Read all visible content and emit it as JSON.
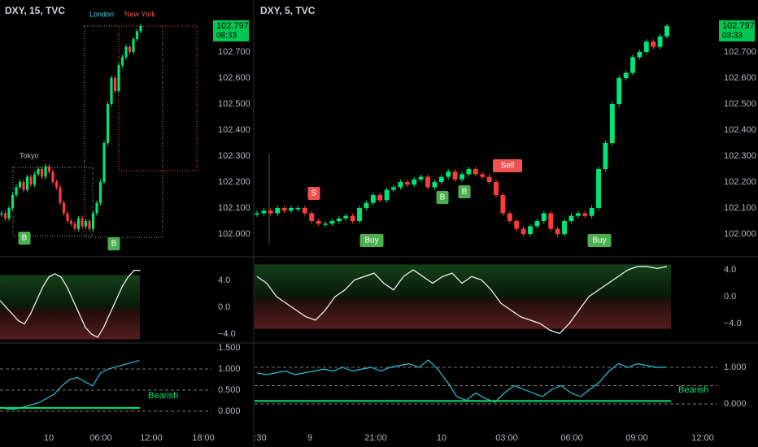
{
  "panels": [
    {
      "title": "DXY, 15, TVC",
      "sessions": [
        "Tokyo",
        "London",
        "New York"
      ],
      "markers": [
        "B",
        "B"
      ],
      "price_ticks": [
        {
          "value": 102.7,
          "label": "102.700"
        },
        {
          "value": 102.6,
          "label": "102.600"
        },
        {
          "value": 102.5,
          "label": "102.500"
        },
        {
          "value": 102.4,
          "label": "102.400"
        },
        {
          "value": 102.3,
          "label": "102.300"
        },
        {
          "value": 102.2,
          "label": "102.200"
        },
        {
          "value": 102.1,
          "label": "102.100"
        },
        {
          "value": 102.0,
          "label": "102.000"
        }
      ],
      "price_badge": {
        "price": 102.797,
        "countdown": "08:33"
      },
      "price_series": [
        102.08,
        102.06,
        102.1,
        102.15,
        102.18,
        102.2,
        102.17,
        102.22,
        102.19,
        102.23,
        102.25,
        102.22,
        102.26,
        102.24,
        102.2,
        102.18,
        102.12,
        102.08,
        102.05,
        102.04,
        102.02,
        102.06,
        102.03,
        102.05,
        102.02,
        102.08,
        102.12,
        102.2,
        102.35,
        102.5,
        102.6,
        102.55,
        102.65,
        102.68,
        102.72,
        102.7,
        102.75,
        102.78,
        102.8
      ],
      "osc_ticks": [
        {
          "value": 4,
          "label": "4.0"
        },
        {
          "value": 0,
          "label": "0.0"
        },
        {
          "value": -4,
          "label": "−4.0"
        }
      ],
      "osc_series": [
        1,
        0,
        -1,
        -2,
        -2.5,
        -1,
        1,
        3,
        4.5,
        5,
        4.5,
        3,
        1,
        -1,
        -3,
        -4,
        -4.5,
        -3,
        -1,
        1,
        3,
        4.5,
        5.5,
        5.5
      ],
      "vol_ticks": [
        {
          "value": 1.5,
          "label": "1.500"
        },
        {
          "value": 1,
          "label": "1.000"
        },
        {
          "value": 0.5,
          "label": "0.500"
        },
        {
          "value": 0,
          "label": "0.000"
        }
      ],
      "vol_label": "Bearish",
      "vol_series": [
        0.1,
        0.05,
        0.05,
        0.1,
        0.15,
        0.2,
        0.3,
        0.4,
        0.6,
        0.75,
        0.8,
        0.7,
        0.6,
        0.9,
        1.0,
        1.05,
        1.1,
        1.15,
        1.2
      ],
      "time_ticks": [
        "10",
        "06:00",
        "12:00",
        "18:00"
      ]
    },
    {
      "title": "DXY, 5, TVC",
      "sessions": [],
      "markers": [
        "S",
        "Sell",
        "Buy",
        "B",
        "B",
        "Buy"
      ],
      "price_ticks": [
        {
          "value": 102.7,
          "label": "102.700"
        },
        {
          "value": 102.6,
          "label": "102.600"
        },
        {
          "value": 102.5,
          "label": "102.500"
        },
        {
          "value": 102.4,
          "label": "102.400"
        },
        {
          "value": 102.3,
          "label": "102.300"
        },
        {
          "value": 102.2,
          "label": "102.200"
        },
        {
          "value": 102.1,
          "label": "102.100"
        },
        {
          "value": 102.0,
          "label": "102.000"
        }
      ],
      "price_badge": {
        "price": 102.797,
        "countdown": "03:33"
      },
      "price_series": [
        102.08,
        102.09,
        102.08,
        102.1,
        102.09,
        102.1,
        102.1,
        102.08,
        102.05,
        102.04,
        102.04,
        102.05,
        102.06,
        102.07,
        102.05,
        102.1,
        102.12,
        102.15,
        102.13,
        102.17,
        102.18,
        102.2,
        102.19,
        102.21,
        102.22,
        102.18,
        102.2,
        102.22,
        102.24,
        102.21,
        102.23,
        102.25,
        102.23,
        102.22,
        102.2,
        102.15,
        102.08,
        102.05,
        102.02,
        102.0,
        102.03,
        102.05,
        102.08,
        102.02,
        102.0,
        102.05,
        102.07,
        102.08,
        102.07,
        102.1,
        102.25,
        102.35,
        102.5,
        102.6,
        102.62,
        102.68,
        102.7,
        102.74,
        102.72,
        102.76,
        102.8
      ],
      "osc_ticks": [
        {
          "value": 4,
          "label": "4.0"
        },
        {
          "value": 0,
          "label": "0.0"
        },
        {
          "value": -4,
          "label": "−4.0"
        }
      ],
      "osc_series": [
        3,
        2,
        0,
        -1,
        -2,
        -3,
        -3.5,
        -2,
        0,
        1,
        2.5,
        3,
        3.5,
        2,
        1,
        3,
        4,
        3,
        2,
        3,
        3.5,
        2,
        3,
        2.5,
        1,
        -1,
        -2,
        -3,
        -3.5,
        -4,
        -5,
        -5.5,
        -4,
        -2,
        0,
        1,
        2,
        3,
        4,
        4.5,
        4.5,
        4.2,
        4.5
      ],
      "vol_ticks": [
        {
          "value": 1,
          "label": "1.000"
        },
        {
          "value": 0,
          "label": "0.000"
        }
      ],
      "vol_label": "Bearish",
      "vol_series": [
        0.85,
        0.8,
        0.85,
        0.9,
        0.8,
        0.85,
        0.9,
        0.95,
        0.9,
        1.0,
        0.9,
        0.95,
        1.0,
        0.9,
        1.0,
        1.05,
        1.1,
        1.0,
        1.2,
        0.95,
        0.6,
        0.2,
        0.1,
        0.3,
        0.15,
        0.05,
        0.3,
        0.5,
        0.4,
        0.3,
        0.2,
        0.4,
        0.5,
        0.3,
        0.2,
        0.4,
        0.6,
        0.9,
        1.1,
        1.0,
        1.1,
        1.05,
        1.0,
        1.0
      ],
      "time_ticks": [
        ":30",
        "9",
        "21:00",
        "10",
        "03:00",
        "06:00",
        "09:00",
        "12:00"
      ]
    }
  ]
}
